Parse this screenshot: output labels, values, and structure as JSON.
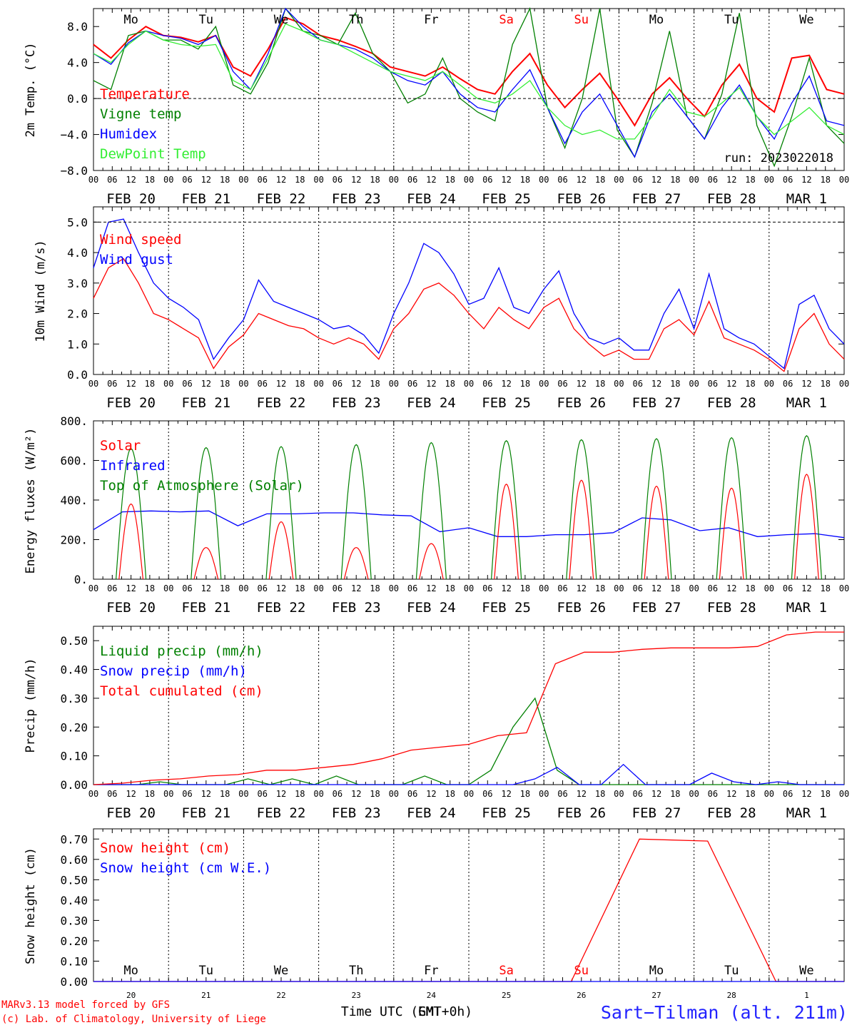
{
  "chart_data": [
    {
      "type": "line",
      "ylabel": "2m Temp. (°C)",
      "ylim": [
        -8,
        10
      ],
      "yticks": [
        -8,
        -4,
        0,
        4,
        8
      ],
      "ytick_labels": [
        "−8.0",
        "−4.0",
        "0.0",
        "4.0",
        "8.0"
      ],
      "grid": "dashed zero line, dotted day separators",
      "legend_placement": "left",
      "series": [
        {
          "name": "Temperature",
          "color": "#ff0000",
          "values": [
            6.0,
            4.5,
            6.5,
            8.0,
            7.0,
            6.8,
            6.3,
            7.0,
            3.5,
            2.5,
            5.5,
            9.0,
            8.3,
            7.0,
            6.5,
            5.8,
            5.0,
            3.5,
            3.0,
            2.5,
            3.5,
            2.2,
            1.0,
            0.5,
            3.0,
            5.0,
            1.5,
            -1.0,
            1.0,
            2.8,
            0.0,
            -3.0,
            0.5,
            2.3,
            0.0,
            -2.0,
            1.5,
            3.8,
            0.0,
            -1.5,
            4.5,
            4.8,
            1.0,
            0.5
          ]
        },
        {
          "name": "Vigne temp",
          "color": "#008000",
          "values": [
            2.0,
            1.0,
            7.0,
            7.5,
            6.5,
            6.5,
            5.5,
            8.0,
            1.5,
            0.5,
            4.0,
            10.0,
            7.5,
            7.0,
            6.0,
            9.5,
            5.0,
            3.0,
            -0.5,
            0.5,
            4.5,
            0.0,
            -1.5,
            -2.5,
            6.0,
            10.0,
            -1.0,
            -5.5,
            0.0,
            10.0,
            -3.5,
            -6.5,
            -0.5,
            7.5,
            -2.0,
            -4.5,
            0.5,
            9.5,
            -3.0,
            -7.5,
            -2.0,
            4.5,
            -3.0,
            -5.0
          ]
        },
        {
          "name": "Humidex",
          "color": "#0000ff",
          "values": [
            5.0,
            3.8,
            6.2,
            7.5,
            7.0,
            6.7,
            6.0,
            7.0,
            3.0,
            1.0,
            5.0,
            10.0,
            8.0,
            6.5,
            6.0,
            5.5,
            4.5,
            3.0,
            2.0,
            1.5,
            3.0,
            0.5,
            -1.0,
            -1.5,
            1.0,
            3.2,
            -1.0,
            -5.0,
            -1.5,
            0.5,
            -3.0,
            -6.5,
            -1.5,
            0.5,
            -2.0,
            -4.5,
            -1.0,
            1.5,
            -2.0,
            -4.5,
            -0.5,
            2.5,
            -2.5,
            -3.0
          ]
        },
        {
          "name": "DewPoint Temp",
          "color": "#33ee33",
          "values": [
            5.0,
            4.0,
            6.0,
            7.5,
            6.5,
            6.0,
            5.8,
            6.0,
            2.0,
            1.0,
            4.5,
            8.3,
            7.5,
            6.5,
            6.0,
            5.0,
            4.0,
            3.0,
            2.5,
            2.0,
            3.0,
            1.5,
            0.0,
            -0.5,
            0.5,
            2.0,
            -1.0,
            -3.0,
            -4.0,
            -3.5,
            -4.5,
            -4.5,
            -2.0,
            1.0,
            -1.5,
            -2.0,
            -0.5,
            1.2,
            -2.0,
            -4.0,
            -2.5,
            -1.0,
            -3.0,
            -4.0
          ]
        }
      ],
      "annotations": [
        "run: 2023022018"
      ]
    },
    {
      "type": "line",
      "ylabel": "10m Wind (m/s)",
      "ylim": [
        0,
        5.5
      ],
      "yticks": [
        0,
        1,
        2,
        3,
        4,
        5
      ],
      "ytick_labels": [
        "0.0",
        "1.0",
        "2.0",
        "3.0",
        "4.0",
        "5.0"
      ],
      "grid": "dashed line at 5.0, dotted day separators",
      "legend_placement": "top-left",
      "series": [
        {
          "name": "Wind speed",
          "color": "#ff0000",
          "values": [
            2.5,
            3.5,
            3.8,
            3.0,
            2.0,
            1.8,
            1.5,
            1.2,
            0.2,
            0.9,
            1.3,
            2.0,
            1.8,
            1.6,
            1.5,
            1.2,
            1.0,
            1.2,
            1.0,
            0.5,
            1.5,
            2.0,
            2.8,
            3.0,
            2.6,
            2.0,
            1.5,
            2.2,
            1.8,
            1.5,
            2.2,
            2.5,
            1.5,
            1.0,
            0.6,
            0.8,
            0.5,
            0.5,
            1.5,
            1.8,
            1.3,
            2.4,
            1.2,
            1.0,
            0.8,
            0.5,
            0.1,
            1.5,
            2.0,
            1.0,
            0.5
          ]
        },
        {
          "name": "Wind gust",
          "color": "#0000ff",
          "values": [
            3.5,
            5.0,
            5.1,
            4.0,
            3.0,
            2.5,
            2.2,
            1.8,
            0.5,
            1.2,
            1.8,
            3.1,
            2.4,
            2.2,
            2.0,
            1.8,
            1.5,
            1.6,
            1.3,
            0.7,
            2.0,
            3.0,
            4.3,
            4.0,
            3.3,
            2.3,
            2.5,
            3.5,
            2.2,
            2.0,
            2.8,
            3.4,
            2.0,
            1.2,
            1.0,
            1.2,
            0.8,
            0.8,
            2.0,
            2.8,
            1.5,
            3.3,
            1.5,
            1.2,
            1.0,
            0.6,
            0.2,
            2.3,
            2.6,
            1.5,
            1.0
          ]
        }
      ]
    },
    {
      "type": "line",
      "ylabel": "Energy fluxes (W/m²)",
      "ylim": [
        0,
        800
      ],
      "yticks": [
        0,
        200,
        400,
        600,
        800
      ],
      "ytick_labels": [
        "0.",
        "200.",
        "400.",
        "600.",
        "800."
      ],
      "grid": "dotted day separators",
      "legend_placement": "top-left",
      "solar_peaks": [
        380,
        160,
        290,
        160,
        180,
        480,
        500,
        470,
        460,
        530
      ],
      "toa_peaks": [
        660,
        665,
        670,
        680,
        690,
        700,
        705,
        710,
        715,
        725
      ],
      "series": [
        {
          "name": "Solar",
          "color": "#ff0000",
          "values": []
        },
        {
          "name": "Infrared",
          "color": "#0000ff",
          "values": [
            250,
            340,
            345,
            340,
            345,
            270,
            330,
            330,
            335,
            335,
            325,
            320,
            240,
            260,
            215,
            215,
            225,
            225,
            235,
            310,
            300,
            245,
            260,
            215,
            225,
            230,
            210
          ]
        },
        {
          "name": "Top of Atmosphere (Solar)",
          "color": "#008000",
          "values": []
        }
      ]
    },
    {
      "type": "line",
      "ylabel": "Precip (mm/h)",
      "ylim": [
        0,
        0.55
      ],
      "yticks": [
        0,
        0.1,
        0.2,
        0.3,
        0.4,
        0.5
      ],
      "ytick_labels": [
        "0.00",
        "0.10",
        "0.20",
        "0.30",
        "0.40",
        "0.50"
      ],
      "grid": "dotted day separators",
      "legend_placement": "top-left",
      "series": [
        {
          "name": "Liquid precip (mm/h)",
          "color": "#008000",
          "values": [
            0.0,
            0.0,
            0.0,
            0.01,
            0.0,
            0.0,
            0.0,
            0.02,
            0.0,
            0.02,
            0.0,
            0.03,
            0.0,
            0.0,
            0.0,
            0.03,
            0.0,
            0.0,
            0.05,
            0.2,
            0.3,
            0.05,
            0.0,
            0.0,
            0.0,
            0.0,
            0.0,
            0.0,
            0.0,
            0.0,
            0.0,
            0.0,
            0.0,
            0.0,
            0.0
          ]
        },
        {
          "name": "Snow precip (mm/h)",
          "color": "#0000ff",
          "values": [
            0.0,
            0.0,
            0.0,
            0.0,
            0.0,
            0.0,
            0.0,
            0.0,
            0.0,
            0.0,
            0.0,
            0.0,
            0.0,
            0.0,
            0.0,
            0.0,
            0.0,
            0.0,
            0.0,
            0.0,
            0.02,
            0.06,
            0.0,
            0.0,
            0.07,
            0.0,
            0.0,
            0.0,
            0.04,
            0.01,
            0.0,
            0.01,
            0.0,
            0.0,
            0.0
          ]
        },
        {
          "name": "Total cumulated (cm)",
          "color": "#ff0000",
          "values": [
            0.0,
            0.005,
            0.015,
            0.02,
            0.03,
            0.035,
            0.05,
            0.05,
            0.06,
            0.07,
            0.09,
            0.12,
            0.13,
            0.14,
            0.17,
            0.18,
            0.42,
            0.46,
            0.46,
            0.47,
            0.475,
            0.475,
            0.475,
            0.48,
            0.52,
            0.53,
            0.53
          ]
        }
      ]
    },
    {
      "type": "line",
      "ylabel": "Snow height (cm)",
      "ylim": [
        0,
        0.75
      ],
      "yticks": [
        0,
        0.1,
        0.2,
        0.3,
        0.4,
        0.5,
        0.6,
        0.7
      ],
      "ytick_labels": [
        "0.00",
        "0.10",
        "0.20",
        "0.30",
        "0.40",
        "0.50",
        "0.60",
        "0.70"
      ],
      "grid": "dotted day separators",
      "legend_placement": "top-left",
      "series": [
        {
          "name": "Snow height (cm)",
          "color": "#ff0000",
          "values": [
            0,
            0,
            0,
            0,
            0,
            0,
            0,
            0,
            0.7,
            0.69,
            0,
            0
          ]
        },
        {
          "name": "Snow height (cm W.E.)",
          "color": "#0000ff",
          "values": [
            0,
            0,
            0,
            0,
            0,
            0,
            0,
            0,
            0,
            0,
            0,
            0
          ]
        }
      ]
    }
  ],
  "axis": {
    "hour_ticks": [
      "00",
      "06",
      "12",
      "18"
    ],
    "final_tick": "00",
    "dates": [
      "FEB 20",
      "FEB 21",
      "FEB 22",
      "FEB 23",
      "FEB 24",
      "FEB 25",
      "FEB 26",
      "FEB 27",
      "FEB 28",
      "MAR  1"
    ],
    "weekdays": [
      "Mo",
      "Tu",
      "We",
      "Th",
      "Fr",
      "Sa",
      "Su",
      "Mo",
      "Tu",
      "We"
    ],
    "weekday_colors": [
      "#000000",
      "#000000",
      "#000000",
      "#000000",
      "#000000",
      "#ff0000",
      "#ff0000",
      "#000000",
      "#000000",
      "#000000"
    ],
    "day_numbers": [
      "20",
      "21",
      "22",
      "23",
      "24",
      "25",
      "26",
      "27",
      "28",
      "1"
    ]
  },
  "footer": {
    "xlabel": "Time UTC (GMT+0h)",
    "xlabel_overlay": "EMT",
    "credit_line1": "MARv3.13 model forced by GFS",
    "credit_line2": "(c) Lab. of Climatology, University of Liege",
    "station": "Sart−Tilman (alt. 211m)"
  }
}
